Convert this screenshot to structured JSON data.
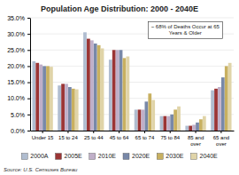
{
  "chart_data": {
    "type": "bar",
    "title": "Population Age Distribution: 2000 - 2040E",
    "annotations": [
      "~ 68% of Deaths Occur at 65\nYears & Older",
      "Source: U.S. Censuses Bureau"
    ],
    "categories": [
      "Under 15",
      "15 to 24",
      "25 to 44",
      "45 to 64",
      "65 to 74",
      "75 to 84",
      "85 and\nover",
      "65 and\nover"
    ],
    "series": [
      {
        "name": "2000A",
        "color": "#b0bdd0",
        "values": [
          21.5,
          14.0,
          30.5,
          22.0,
          6.5,
          4.5,
          1.5,
          12.5
        ]
      },
      {
        "name": "2005E",
        "color": "#9b3535",
        "values": [
          21.0,
          14.5,
          28.5,
          25.0,
          6.5,
          4.5,
          1.5,
          13.0
        ]
      },
      {
        "name": "2010E",
        "color": "#c0afc8",
        "values": [
          20.5,
          14.5,
          28.0,
          25.0,
          6.5,
          4.5,
          1.8,
          13.5
        ]
      },
      {
        "name": "2020E",
        "color": "#7888a8",
        "values": [
          20.0,
          13.5,
          27.0,
          25.0,
          9.0,
          5.0,
          2.5,
          16.5
        ]
      },
      {
        "name": "2030E",
        "color": "#c8b060",
        "values": [
          20.0,
          13.0,
          26.5,
          22.5,
          11.5,
          6.5,
          3.5,
          20.0
        ]
      },
      {
        "name": "2040E",
        "color": "#e0d4a8",
        "values": [
          19.8,
          12.8,
          25.5,
          23.0,
          9.5,
          7.5,
          4.5,
          21.0
        ]
      }
    ],
    "ylim": [
      0,
      35
    ],
    "yticks": [
      {
        "value": 0,
        "label": "0.0%"
      },
      {
        "value": 5,
        "label": "5.0%"
      },
      {
        "value": 10,
        "label": "10.0%"
      },
      {
        "value": 15,
        "label": "15.0%"
      },
      {
        "value": 20,
        "label": "20.0%"
      },
      {
        "value": 25,
        "label": "25.0%"
      },
      {
        "value": 30,
        "label": "30.0%"
      },
      {
        "value": 35,
        "label": "35.0%"
      }
    ],
    "grid": true,
    "legend": "bottom"
  }
}
